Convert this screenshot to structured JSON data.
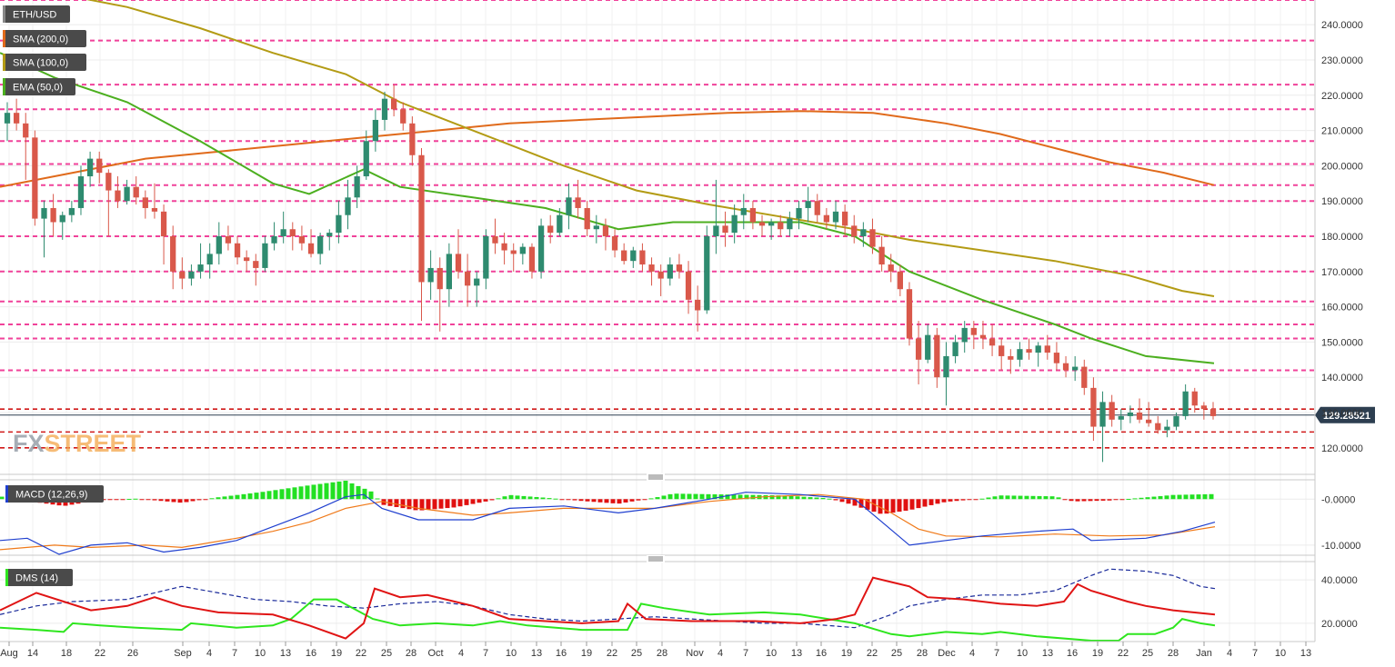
{
  "chart_data": [
    {
      "type": "candlestick",
      "title": "ETH/USD",
      "panel": "price",
      "indicators": [
        {
          "name": "SMA (200,0)",
          "color": "#e06a1b"
        },
        {
          "name": "SMA (100,0)",
          "color": "#b39b14"
        },
        {
          "name": "EMA (50,0)",
          "color": "#4caf1f"
        }
      ],
      "ylim": [
        113,
        247
      ],
      "y_ticks": [
        {
          "value": 120,
          "label": "120.0000"
        },
        {
          "value": 130,
          "label": "130.0000"
        },
        {
          "value": 140,
          "label": "140.0000"
        },
        {
          "value": 150,
          "label": "150.0000"
        },
        {
          "value": 160,
          "label": "160.0000"
        },
        {
          "value": 170,
          "label": "170.0000"
        },
        {
          "value": 180,
          "label": "180.0000"
        },
        {
          "value": 190,
          "label": "190.0000"
        },
        {
          "value": 200,
          "label": "200.0000"
        },
        {
          "value": 210,
          "label": "210.0000"
        },
        {
          "value": 220,
          "label": "220.0000"
        },
        {
          "value": 230,
          "label": "230.0000"
        },
        {
          "value": 240,
          "label": "240.0000"
        }
      ],
      "last_price": 129.28521,
      "last_price_label": "129.28521",
      "resistance_levels": [
        247,
        235.5,
        223,
        216,
        207,
        200.5,
        194.5,
        190,
        180,
        170,
        161.5,
        155,
        151,
        142
      ],
      "support_levels": [
        131,
        124.5,
        120
      ],
      "candles_approx": [
        [
          212,
          218,
          207,
          215
        ],
        [
          215,
          219,
          210,
          212
        ],
        [
          212,
          215,
          196,
          208
        ],
        [
          208,
          210,
          183,
          185
        ],
        [
          185,
          190,
          174,
          188
        ],
        [
          188,
          192,
          180,
          184
        ],
        [
          184,
          187,
          179,
          186
        ],
        [
          186,
          190,
          184,
          188
        ],
        [
          188,
          200,
          186,
          197
        ],
        [
          197,
          204,
          194,
          202
        ],
        [
          202,
          204,
          195,
          198
        ],
        [
          198,
          199,
          180,
          193
        ],
        [
          193,
          197,
          188,
          190
        ],
        [
          190,
          196,
          189,
          194
        ],
        [
          194,
          197,
          189,
          191
        ],
        [
          191,
          193,
          185,
          188
        ],
        [
          188,
          195,
          185,
          187
        ],
        [
          187,
          189,
          172,
          180
        ],
        [
          180,
          183,
          165,
          170
        ],
        [
          170,
          174,
          165,
          168
        ],
        [
          168,
          172,
          166,
          170
        ],
        [
          170,
          178,
          168,
          172
        ],
        [
          172,
          178,
          168,
          175
        ],
        [
          175,
          184,
          172,
          180
        ],
        [
          180,
          183,
          176,
          178
        ],
        [
          178,
          180,
          172,
          174
        ],
        [
          174,
          176,
          170,
          173
        ],
        [
          173,
          175,
          166,
          171
        ],
        [
          171,
          180,
          170,
          178
        ],
        [
          178,
          184,
          176,
          180
        ],
        [
          180,
          187,
          178,
          182
        ],
        [
          182,
          184,
          176,
          180
        ],
        [
          180,
          183,
          176,
          178
        ],
        [
          178,
          182,
          174,
          175
        ],
        [
          175,
          181,
          172,
          180
        ],
        [
          180,
          182,
          176,
          181
        ],
        [
          181,
          190,
          178,
          186
        ],
        [
          186,
          196,
          182,
          191
        ],
        [
          191,
          200,
          188,
          197
        ],
        [
          197,
          210,
          196,
          207
        ],
        [
          207,
          216,
          204,
          213
        ],
        [
          213,
          221,
          210,
          219
        ],
        [
          219,
          223,
          214,
          216
        ],
        [
          216,
          218,
          210,
          212
        ],
        [
          212,
          214,
          200,
          203
        ],
        [
          203,
          205,
          156,
          167
        ],
        [
          167,
          176,
          162,
          171
        ],
        [
          171,
          174,
          153,
          165
        ],
        [
          165,
          178,
          160,
          175
        ],
        [
          175,
          182,
          168,
          170
        ],
        [
          170,
          175,
          160,
          166
        ],
        [
          166,
          170,
          160,
          168
        ],
        [
          168,
          182,
          165,
          180
        ],
        [
          180,
          185,
          175,
          178
        ],
        [
          178,
          181,
          172,
          176
        ],
        [
          176,
          178,
          170,
          175
        ],
        [
          175,
          178,
          172,
          177
        ],
        [
          177,
          178,
          168,
          170
        ],
        [
          170,
          185,
          168,
          183
        ],
        [
          183,
          186,
          178,
          181
        ],
        [
          181,
          188,
          180,
          186
        ],
        [
          186,
          195,
          182,
          191
        ],
        [
          191,
          196,
          185,
          188
        ],
        [
          188,
          190,
          180,
          182
        ],
        [
          182,
          186,
          178,
          183
        ],
        [
          183,
          185,
          176,
          180
        ],
        [
          180,
          182,
          174,
          176
        ],
        [
          176,
          178,
          172,
          173
        ],
        [
          173,
          177,
          171,
          176
        ],
        [
          176,
          178,
          170,
          172
        ],
        [
          172,
          174,
          166,
          170
        ],
        [
          170,
          172,
          163,
          168
        ],
        [
          168,
          174,
          166,
          172
        ],
        [
          172,
          175,
          168,
          170
        ],
        [
          170,
          173,
          158,
          162
        ],
        [
          162,
          166,
          153,
          159
        ],
        [
          159,
          183,
          158,
          180
        ],
        [
          180,
          196,
          175,
          183
        ],
        [
          183,
          187,
          177,
          181
        ],
        [
          181,
          189,
          178,
          186
        ],
        [
          186,
          192,
          182,
          188
        ],
        [
          188,
          190,
          182,
          184
        ],
        [
          184,
          186,
          180,
          183
        ],
        [
          183,
          185,
          179,
          184
        ],
        [
          184,
          186,
          180,
          182
        ],
        [
          182,
          187,
          180,
          185
        ],
        [
          185,
          190,
          182,
          188
        ],
        [
          188,
          194,
          184,
          190
        ],
        [
          190,
          192,
          184,
          186
        ],
        [
          186,
          188,
          182,
          184
        ],
        [
          184,
          190,
          182,
          187
        ],
        [
          187,
          189,
          180,
          183
        ],
        [
          183,
          186,
          178,
          180
        ],
        [
          180,
          184,
          177,
          182
        ],
        [
          182,
          185,
          175,
          177
        ],
        [
          177,
          180,
          170,
          172
        ],
        [
          172,
          175,
          167,
          170
        ],
        [
          170,
          172,
          163,
          165
        ],
        [
          165,
          167,
          149,
          151
        ],
        [
          151,
          156,
          138,
          145
        ],
        [
          145,
          155,
          144,
          152
        ],
        [
          152,
          154,
          137,
          140
        ],
        [
          140,
          150,
          132,
          146
        ],
        [
          146,
          152,
          144,
          150
        ],
        [
          150,
          156,
          147,
          154
        ],
        [
          154,
          156,
          148,
          152
        ],
        [
          152,
          156,
          148,
          151
        ],
        [
          151,
          155,
          146,
          149
        ],
        [
          149,
          151,
          142,
          146
        ],
        [
          146,
          148,
          141,
          145
        ],
        [
          145,
          150,
          143,
          148
        ],
        [
          148,
          151,
          145,
          147
        ],
        [
          147,
          150,
          143,
          149
        ],
        [
          149,
          152,
          145,
          147
        ],
        [
          147,
          150,
          142,
          144
        ],
        [
          144,
          146,
          140,
          142
        ],
        [
          142,
          146,
          139,
          143
        ],
        [
          143,
          145,
          135,
          137
        ],
        [
          137,
          140,
          122,
          126
        ],
        [
          126,
          136,
          116,
          133
        ],
        [
          133,
          135,
          126,
          128
        ],
        [
          128,
          131,
          125,
          129
        ],
        [
          129,
          132,
          127,
          130
        ],
        [
          130,
          134,
          127,
          128
        ],
        [
          128,
          133,
          126,
          127
        ],
        [
          127,
          129,
          124,
          125
        ],
        [
          125,
          128,
          123,
          126
        ],
        [
          126,
          130,
          125,
          129
        ],
        [
          129,
          138,
          128,
          136
        ],
        [
          136,
          137,
          130,
          132
        ],
        [
          132,
          133,
          128,
          131
        ],
        [
          131,
          133,
          128,
          129
        ]
      ]
    },
    {
      "type": "histogram+line",
      "panel": "macd",
      "label": "MACD (12,26,9)",
      "ylim": [
        -12,
        4
      ],
      "y_ticks": [
        {
          "value": 0,
          "label": "-0.0000"
        },
        {
          "value": -10,
          "label": "-10.0000"
        }
      ],
      "series": [
        {
          "name": "macd",
          "color": "#1f3fcf"
        },
        {
          "name": "signal",
          "color": "#f07a1a"
        }
      ]
    },
    {
      "type": "line",
      "panel": "dms",
      "label": "DMS (14)",
      "ylim": [
        12,
        48
      ],
      "y_ticks": [
        {
          "value": 40,
          "label": "40.0000"
        },
        {
          "value": 20,
          "label": "20.0000"
        }
      ],
      "series": [
        {
          "name": "+DI",
          "color": "#2ee61e"
        },
        {
          "name": "-DI",
          "color": "#e01414"
        },
        {
          "name": "ADX",
          "color": "#1a2a9a"
        }
      ]
    }
  ],
  "x_axis": {
    "ticks": [
      {
        "label": "Aug",
        "x": 0
      },
      {
        "label": "14",
        "x": 1
      },
      {
        "label": "18",
        "x": 2
      },
      {
        "label": "22",
        "x": 3
      },
      {
        "label": "26",
        "x": 4
      },
      {
        "label": "Sep",
        "x": 5
      },
      {
        "label": "4",
        "x": 6
      },
      {
        "label": "7",
        "x": 7
      },
      {
        "label": "10",
        "x": 8
      },
      {
        "label": "13",
        "x": 9
      },
      {
        "label": "16",
        "x": 10
      },
      {
        "label": "19",
        "x": 11
      },
      {
        "label": "22",
        "x": 12
      },
      {
        "label": "25",
        "x": 13
      },
      {
        "label": "28",
        "x": 14
      },
      {
        "label": "Oct",
        "x": 15
      },
      {
        "label": "4",
        "x": 16
      },
      {
        "label": "7",
        "x": 17
      },
      {
        "label": "10",
        "x": 18
      },
      {
        "label": "13",
        "x": 19
      },
      {
        "label": "16",
        "x": 20
      },
      {
        "label": "19",
        "x": 21
      },
      {
        "label": "22",
        "x": 22
      },
      {
        "label": "25",
        "x": 23
      },
      {
        "label": "28",
        "x": 24
      },
      {
        "label": "Nov",
        "x": 25
      },
      {
        "label": "4",
        "x": 26
      },
      {
        "label": "7",
        "x": 27
      },
      {
        "label": "10",
        "x": 28
      },
      {
        "label": "13",
        "x": 29
      },
      {
        "label": "16",
        "x": 30
      },
      {
        "label": "19",
        "x": 31
      },
      {
        "label": "22",
        "x": 32
      },
      {
        "label": "25",
        "x": 33
      },
      {
        "label": "28",
        "x": 34
      },
      {
        "label": "Dec",
        "x": 35
      },
      {
        "label": "4",
        "x": 36
      },
      {
        "label": "7",
        "x": 37
      },
      {
        "label": "10",
        "x": 38
      },
      {
        "label": "13",
        "x": 39
      },
      {
        "label": "16",
        "x": 40
      },
      {
        "label": "19",
        "x": 41
      },
      {
        "label": "22",
        "x": 42
      },
      {
        "label": "25",
        "x": 43
      },
      {
        "label": "28",
        "x": 44
      },
      {
        "label": "Jan",
        "x": 45
      },
      {
        "label": "4",
        "x": 46
      },
      {
        "label": "7",
        "x": 47
      },
      {
        "label": "10",
        "x": 48
      },
      {
        "label": "13",
        "x": 49
      }
    ]
  },
  "watermark": "FXSTREET",
  "colors": {
    "bull": "#2e8b6f",
    "bear": "#d9584a",
    "resistance": "#f0429a",
    "support": "#d01818",
    "price_tag": "#2d3e50",
    "label_tag": "#4a4a4a"
  }
}
